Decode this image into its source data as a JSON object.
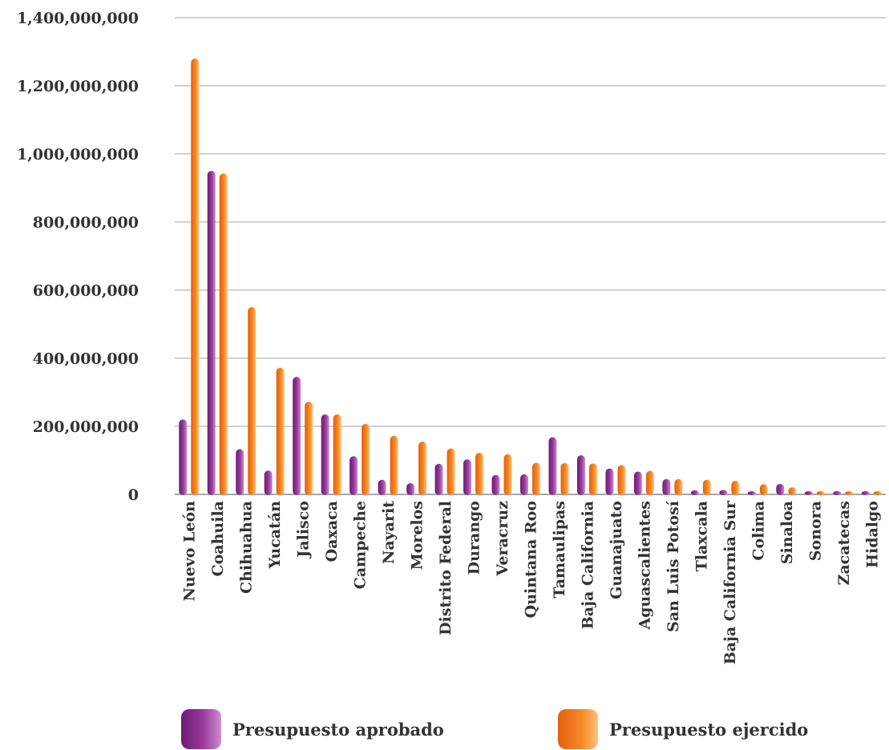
{
  "chart_data": {
    "type": "bar",
    "title": "",
    "xlabel": "",
    "ylabel": "",
    "ylim": [
      0,
      1400000000
    ],
    "y_ticks": [
      "0",
      "200,000,000",
      "400,000,000",
      "600,000,000",
      "800,000,000",
      "1,000,000,000",
      "1,200,000,000",
      "1,400,000,000"
    ],
    "grid": true,
    "legend_position": "bottom",
    "categories": [
      "Nuevo León",
      "Coahuila",
      "Chihuahua",
      "Yucatán",
      "Jalisco",
      "Oaxaca",
      "Campeche",
      "Nayarit",
      "Morelos",
      "Distrito Federal",
      "Durango",
      "Veracruz",
      "Quintana Roo",
      "Tamaulipas",
      "Baja California",
      "Guanajuato",
      "Aguascalientes",
      "San Luis Potosí",
      "Tlaxcala",
      "Baja California Sur",
      "Colima",
      "Sinaloa",
      "Sonora",
      "Zacatecas",
      "Hidalgo"
    ],
    "series": [
      {
        "name": "Presupuesto aprobado",
        "color": "#8b2a8c",
        "values": [
          220000000,
          950000000,
          133000000,
          70000000,
          345000000,
          235000000,
          112000000,
          43000000,
          33000000,
          90000000,
          103000000,
          57000000,
          59000000,
          168000000,
          115000000,
          76000000,
          67000000,
          45000000,
          12000000,
          13000000,
          6000000,
          31000000,
          8000000,
          5000000,
          5000000
        ]
      },
      {
        "name": "Presupuesto ejercido",
        "color": "#f07a18",
        "values": [
          1280000000,
          942000000,
          550000000,
          372000000,
          272000000,
          235000000,
          207000000,
          172000000,
          155000000,
          135000000,
          122000000,
          118000000,
          93000000,
          92000000,
          91000000,
          86000000,
          69000000,
          45000000,
          43000000,
          40000000,
          30000000,
          21000000,
          8000000,
          6000000,
          5000000
        ]
      }
    ]
  },
  "legend": {
    "aprobado_label": "Presupuesto aprobado",
    "ejercido_label": "Presupuesto ejercido"
  }
}
